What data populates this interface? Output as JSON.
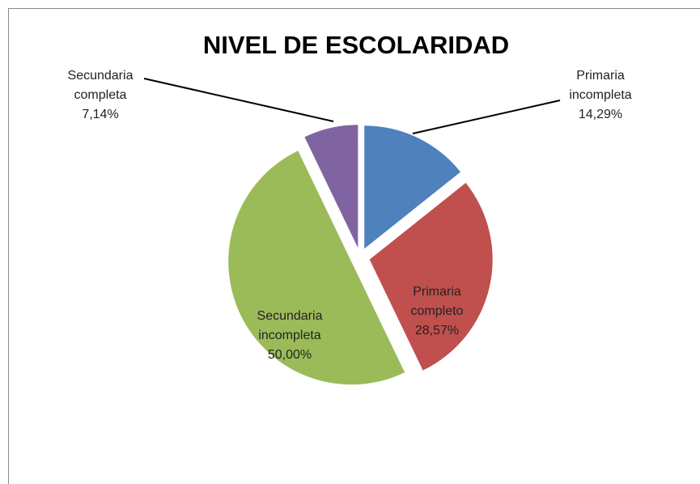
{
  "chart_data": {
    "type": "pie",
    "title": "NIVEL DE ESCOLARIDAD",
    "categories": [
      "Primaria incompleta",
      "Primaria completo",
      "Secundaria incompleta",
      "Secundaria completa"
    ],
    "values": [
      14.29,
      28.57,
      50.0,
      7.14
    ],
    "value_labels": [
      "14,29%",
      "28,57%",
      "50,00%",
      "7,14%"
    ],
    "colors": [
      "#4f81bd",
      "#c0504d",
      "#9bbb59",
      "#8064a2"
    ]
  }
}
